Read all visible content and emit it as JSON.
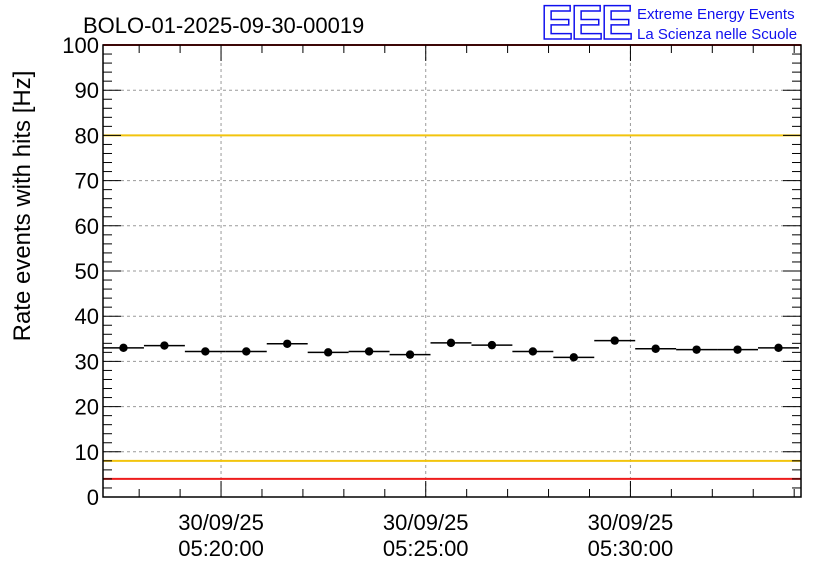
{
  "chart_data": {
    "type": "scatter",
    "title": "BOLO-01-2025-09-30-00019",
    "xlabel": "",
    "ylabel": "Rate events with hits [Hz]",
    "ylim": [
      0,
      100
    ],
    "y_ticks": [
      0,
      10,
      20,
      30,
      40,
      50,
      60,
      70,
      80,
      90,
      100
    ],
    "x_range": [
      "2025-09-30 05:17:07",
      "2025-09-30 05:34:10"
    ],
    "x_ticks": [
      {
        "time": "2025-09-30 05:20:00",
        "date_label": "30/09/25",
        "time_label": "05:20:00"
      },
      {
        "time": "2025-09-30 05:25:00",
        "date_label": "30/09/25",
        "time_label": "05:25:00"
      },
      {
        "time": "2025-09-30 05:30:00",
        "date_label": "30/09/25",
        "time_label": "05:30:00"
      }
    ],
    "grid": true,
    "bin_width_seconds": 60,
    "series": [
      {
        "x": [
          "2025-09-30 05:17:37",
          "2025-09-30 05:18:37",
          "2025-09-30 05:19:37",
          "2025-09-30 05:20:37",
          "2025-09-30 05:21:37",
          "2025-09-30 05:22:37",
          "2025-09-30 05:23:37",
          "2025-09-30 05:24:37",
          "2025-09-30 05:25:37",
          "2025-09-30 05:26:37",
          "2025-09-30 05:27:37",
          "2025-09-30 05:28:37",
          "2025-09-30 05:29:37",
          "2025-09-30 05:30:37",
          "2025-09-30 05:31:37",
          "2025-09-30 05:32:37",
          "2025-09-30 05:33:37"
        ],
        "y": [
          33.0,
          33.5,
          32.2,
          32.2,
          33.9,
          32.0,
          32.2,
          31.5,
          34.1,
          33.6,
          32.2,
          30.9,
          34.6,
          32.8,
          32.6,
          32.6,
          33.0
        ]
      }
    ],
    "reference_lines": [
      {
        "y": 100,
        "color": "#ee1c1c"
      },
      {
        "y": 80,
        "color": "#f2c40e"
      },
      {
        "y": 8,
        "color": "#f2c40e"
      },
      {
        "y": 4,
        "color": "#ee1c1c"
      }
    ]
  },
  "logo": {
    "mark": "EEE",
    "line1": "Extreme Energy Events",
    "line2": "La Scienza nelle Scuole",
    "color": "#1010ee"
  }
}
